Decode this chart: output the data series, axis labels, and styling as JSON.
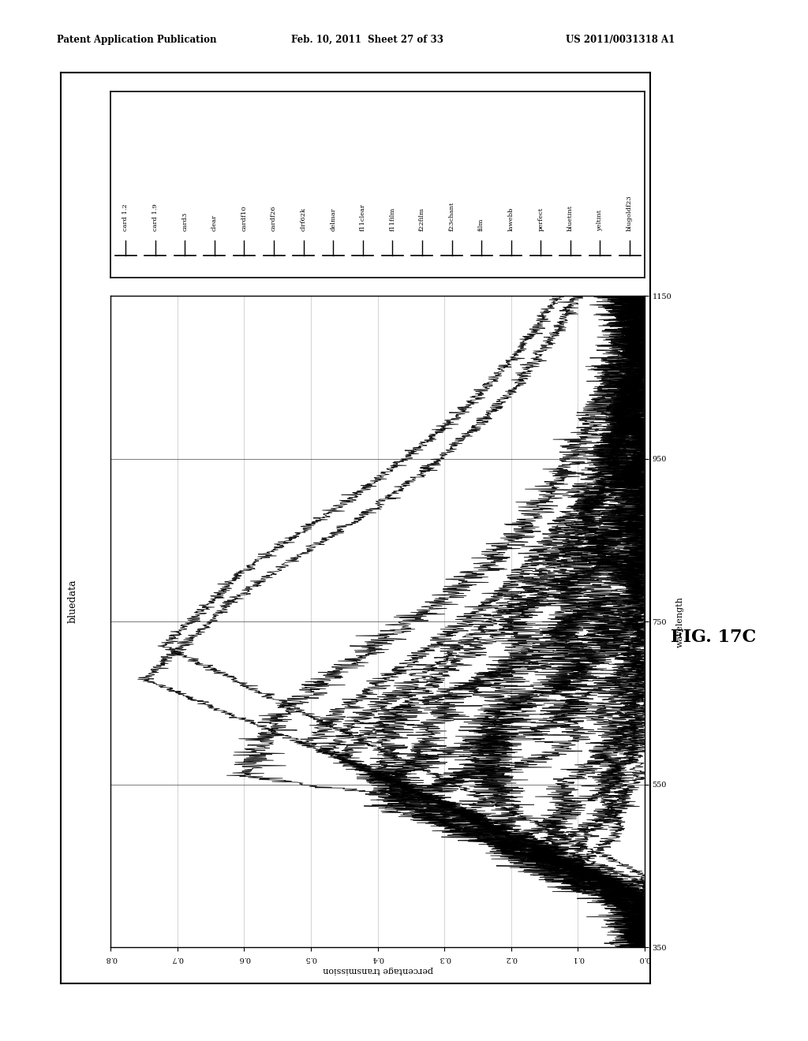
{
  "header_left": "Patent Application Publication",
  "header_center": "Feb. 10, 2011  Sheet 27 of 33",
  "header_right": "US 2011/0031318 A1",
  "figure_label": "FIG. 17C",
  "plot_title": "bluedata",
  "xlabel_rot": "wavelength",
  "ylabel_rot": "percentage transmission",
  "legend_entries": [
    "card 1.2",
    "card 1.9",
    "card3",
    "clear",
    "cardf10",
    "cardf26",
    "clrf62k",
    "delmar",
    "f11clear",
    "f11film",
    "f22film",
    "f23chant",
    "film",
    "lawebb",
    "perfect",
    "bluetint",
    "yeltint",
    "blugoldf23"
  ],
  "bg_color": "#ffffff",
  "line_color": "#000000",
  "wl_min": 350,
  "wl_max": 1150,
  "tr_min": 0.0,
  "tr_max": 0.8,
  "wl_ticks": [
    350,
    550,
    750,
    950,
    1150
  ],
  "tr_ticks": [
    0.0,
    0.1,
    0.2,
    0.3,
    0.4,
    0.5,
    0.6,
    0.7,
    0.8
  ]
}
